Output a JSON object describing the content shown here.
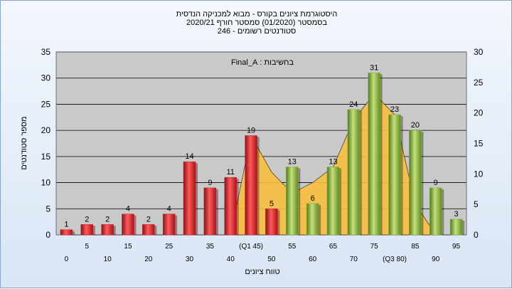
{
  "header": {
    "line1": "היסטוגרמת ציונים בקורס - מבוא למכניקה הנדסית",
    "line2": "בסמסטר  (01/2020)  סמסטר חורף  2020/21",
    "line3": "סטודנטים רשומים - 246"
  },
  "chart_data": {
    "type": "bar",
    "title": "",
    "annotation": "בחשיבות : Final_A",
    "xlabel": "טווח ציונים",
    "ylabel": "מספר סטודנטים",
    "ylim": [
      0,
      35
    ],
    "y_ticks": [
      0,
      5,
      10,
      15,
      20,
      25,
      30,
      35
    ],
    "y2lim": [
      0,
      30
    ],
    "y2_ticks": [
      0,
      5,
      10,
      15,
      20,
      25,
      30
    ],
    "categories": [
      0,
      5,
      10,
      15,
      20,
      25,
      30,
      35,
      40,
      45,
      50,
      55,
      60,
      65,
      70,
      75,
      80,
      85,
      90,
      95
    ],
    "tick_labels": [
      "0",
      "5",
      "10",
      "15",
      "20",
      "25",
      "30",
      "35",
      "40",
      "(Q1 45)",
      "50",
      "55",
      "60",
      "65",
      "70",
      "75",
      "(Q3 80)",
      "85",
      "90",
      "95"
    ],
    "values": [
      1,
      2,
      2,
      4,
      2,
      4,
      14,
      9,
      11,
      19,
      5,
      13,
      6,
      13,
      24,
      31,
      23,
      20,
      9,
      3
    ],
    "bar_colors": [
      "#d9202a",
      "#d9202a",
      "#d9202a",
      "#d9202a",
      "#d9202a",
      "#d9202a",
      "#d9202a",
      "#d9202a",
      "#d9202a",
      "#d9202a",
      "#d9202a",
      "#86b33a",
      "#86b33a",
      "#86b33a",
      "#86b33a",
      "#86b33a",
      "#86b33a",
      "#86b33a",
      "#86b33a",
      "#86b33a"
    ],
    "smoothed_area": [
      0,
      0,
      0,
      0,
      0,
      0,
      0,
      0,
      0,
      19,
      12,
      8,
      10,
      13,
      22,
      27,
      23,
      6,
      0,
      0
    ],
    "area_color": "#f7bf3f",
    "grid": true
  }
}
